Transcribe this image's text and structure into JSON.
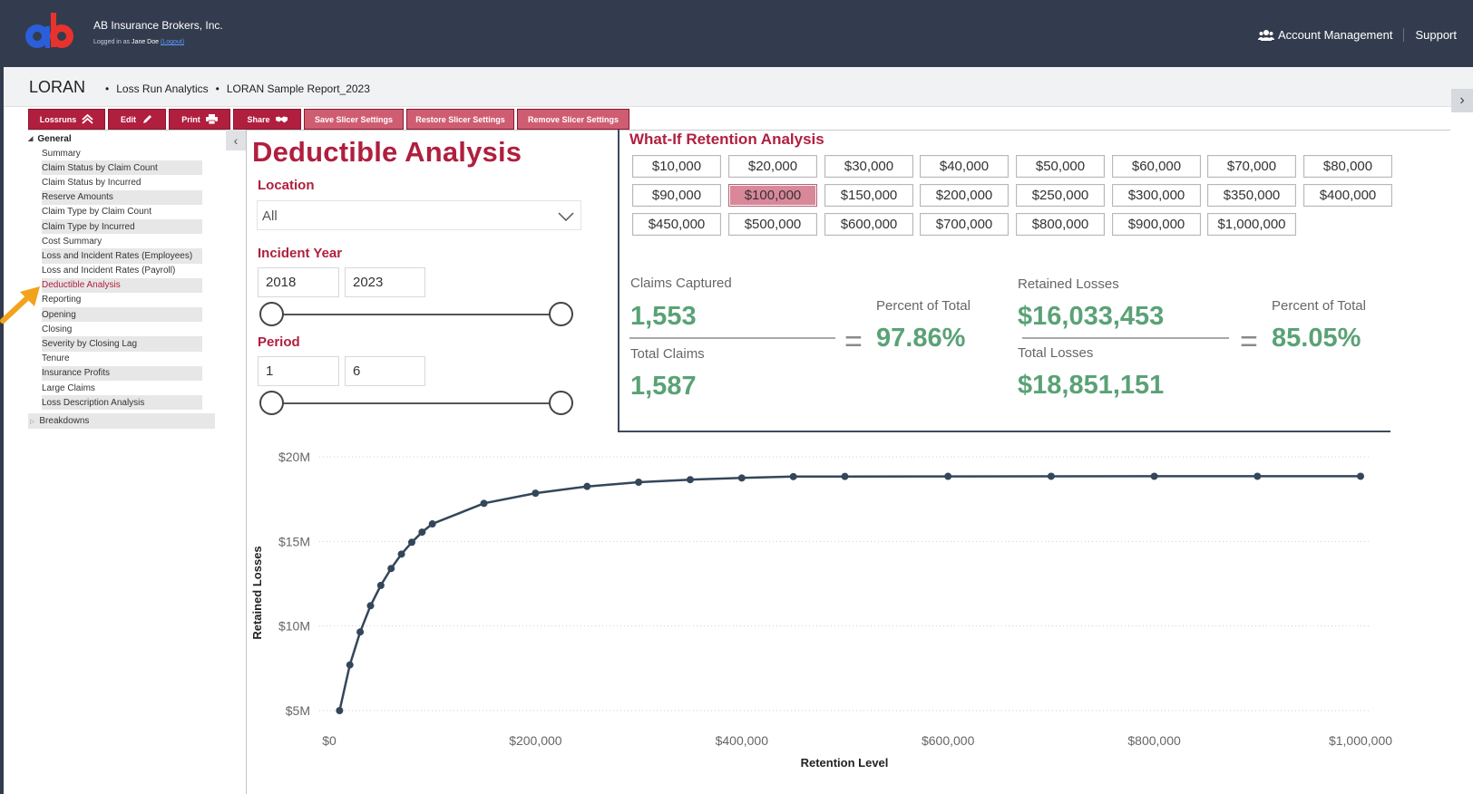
{
  "header": {
    "company": "AB Insurance Brokers, Inc.",
    "logged_in_prefix": "Logged in as ",
    "user": "Jane Doe",
    "logout": "(Logout)",
    "nav": {
      "account": "Account Management",
      "support": "Support"
    }
  },
  "breadcrumb": {
    "app": "LORAN",
    "items": [
      "Loss Run Analytics",
      "LORAN Sample Report_2023"
    ]
  },
  "toolbar": {
    "lossruns": "Lossruns",
    "edit": "Edit",
    "print": "Print",
    "share": "Share",
    "save": "Save Slicer Settings",
    "restore": "Restore Slicer Settings",
    "remove": "Remove Slicer Settings"
  },
  "sidebar": {
    "group": "General",
    "items": [
      {
        "label": "Summary"
      },
      {
        "label": "Claim Status by Claim Count"
      },
      {
        "label": "Claim Status by Incurred"
      },
      {
        "label": "Reserve Amounts"
      },
      {
        "label": "Claim Type by Claim Count"
      },
      {
        "label": "Claim Type by Incurred"
      },
      {
        "label": "Cost Summary"
      },
      {
        "label": "Loss and Incident Rates (Employees)"
      },
      {
        "label": "Loss and Incident Rates (Payroll)"
      },
      {
        "label": "Deductible Analysis"
      },
      {
        "label": "Reporting"
      },
      {
        "label": "Opening"
      },
      {
        "label": "Closing"
      },
      {
        "label": "Severity by Closing Lag"
      },
      {
        "label": "Tenure"
      },
      {
        "label": "Insurance Profits"
      },
      {
        "label": "Large Claims"
      },
      {
        "label": "Loss Description Analysis"
      }
    ],
    "active_item": "Deductible Analysis",
    "breakdowns": "Breakdowns"
  },
  "report": {
    "title": "Deductible Analysis",
    "location": {
      "label": "Location",
      "value": "All"
    },
    "incident_year": {
      "label": "Incident Year",
      "from": "2018",
      "to": "2023"
    },
    "period": {
      "label": "Period",
      "from": "1",
      "to": "6"
    }
  },
  "whatif": {
    "title": "What-If Retention Analysis",
    "options": [
      "$10,000",
      "$20,000",
      "$30,000",
      "$40,000",
      "$50,000",
      "$60,000",
      "$70,000",
      "$80,000",
      "$90,000",
      "$100,000",
      "$150,000",
      "$200,000",
      "$250,000",
      "$300,000",
      "$350,000",
      "$400,000",
      "$450,000",
      "$500,000",
      "$600,000",
      "$700,000",
      "$800,000",
      "$900,000",
      "$1,000,000"
    ],
    "selected": "$100,000",
    "claims_captured_label": "Claims Captured",
    "claims_captured": "1,553",
    "total_claims_label": "Total Claims",
    "total_claims": "1,587",
    "pct_label_1": "Percent of Total",
    "pct_1": "97.86%",
    "retained_losses_label": "Retained Losses",
    "retained_losses": "$16,033,453",
    "total_losses_label": "Total Losses",
    "total_losses": "$18,851,151",
    "pct_label_2": "Percent of Total",
    "pct_2": "85.05%",
    "equals": "="
  },
  "chart_data": {
    "type": "line",
    "xlabel": "Retention Level",
    "ylabel": "Retained Losses",
    "xlim": [
      0,
      1000000
    ],
    "ylim": [
      5000000,
      20000000
    ],
    "x_ticks": [
      {
        "v": 0,
        "label": "$0"
      },
      {
        "v": 200000,
        "label": "$200,000"
      },
      {
        "v": 400000,
        "label": "$400,000"
      },
      {
        "v": 600000,
        "label": "$600,000"
      },
      {
        "v": 800000,
        "label": "$800,000"
      },
      {
        "v": 1000000,
        "label": "$1,000,000"
      }
    ],
    "y_ticks": [
      {
        "v": 5000000,
        "label": "$5M"
      },
      {
        "v": 10000000,
        "label": "$10M"
      },
      {
        "v": 15000000,
        "label": "$15M"
      },
      {
        "v": 20000000,
        "label": "$20M"
      }
    ],
    "grid": "horizontal dotted",
    "color": "#34465a",
    "series": [
      {
        "x": [
          10000,
          20000,
          30000,
          40000,
          50000,
          60000,
          70000,
          80000,
          90000,
          100000,
          150000,
          200000,
          250000,
          300000,
          350000,
          400000,
          450000,
          500000,
          600000,
          700000,
          800000,
          900000,
          1000000
        ],
        "y": [
          5000000,
          7700000,
          9650000,
          11200000,
          12400000,
          13400000,
          14250000,
          14950000,
          15550000,
          16033453,
          17250000,
          17850000,
          18250000,
          18500000,
          18650000,
          18750000,
          18830000,
          18840000,
          18845000,
          18850000,
          18851000,
          18851100,
          18851151
        ]
      }
    ]
  }
}
